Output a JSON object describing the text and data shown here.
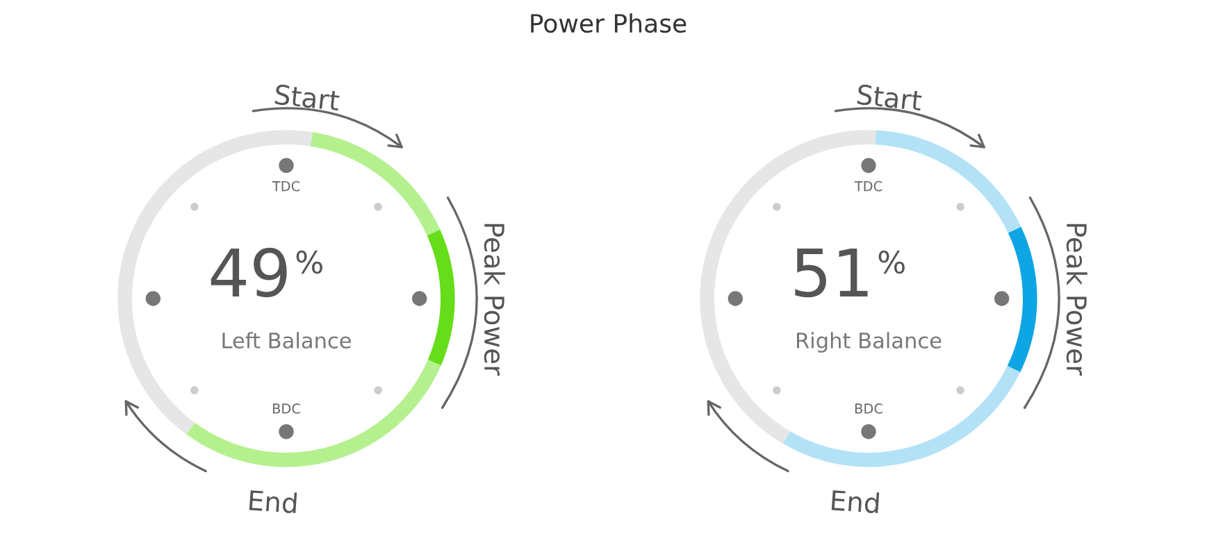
{
  "chart_data": [
    {
      "type": "donut",
      "title": "Power Phase",
      "categories": [
        null,
        null,
        null,
        null,
        null
      ],
      "values": [
        2.5,
        15.8,
        13.2,
        28.6,
        39.9
      ],
      "colors": [
        "#e6e6e6",
        "#b5f08f",
        "#66dd1a",
        "#b5f08f",
        "#e6e6e6"
      ],
      "annotations": [
        "Start",
        "Peak Power",
        "End",
        "TDC",
        "BDC",
        "49",
        "%",
        "Left Balance"
      ]
    },
    {
      "type": "donut",
      "categories": [
        null,
        null,
        null,
        null,
        null
      ],
      "values": [
        0.7,
        17.3,
        14.2,
        26.3,
        41.5
      ],
      "colors": [
        "#e6e6e6",
        "#b3e2f6",
        "#0ea5e4",
        "#b3e2f6",
        "#e6e6e6"
      ],
      "annotations": [
        "Start",
        "Peak Power",
        "End",
        "TDC",
        "BDC",
        "51",
        "%",
        "Right Balance"
      ]
    }
  ]
}
